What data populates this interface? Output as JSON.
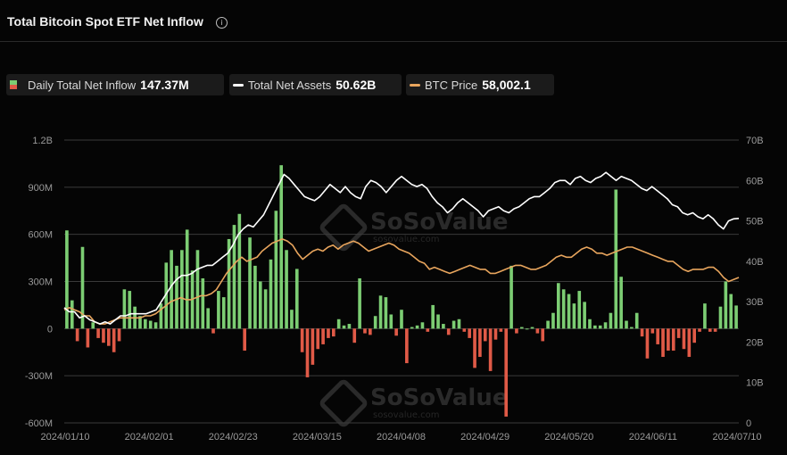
{
  "header": {
    "title": "Total Bitcoin Spot ETF Net Inflow",
    "info_icon": "info-icon"
  },
  "legend": [
    {
      "label": "Daily Total Net Inflow",
      "value": "147.37M",
      "swatch": "bar"
    },
    {
      "label": "Total Net Assets",
      "value": "50.62B",
      "swatch": "line",
      "color": "#ffffff"
    },
    {
      "label": "BTC Price",
      "value": "58,002.1",
      "swatch": "line",
      "color": "#e8a55d"
    }
  ],
  "watermark": {
    "text": "SoSoValue",
    "sub": "sosovalue.com"
  },
  "colors": {
    "positive": "#7ccd73",
    "negative": "#e05a47",
    "assets": "#ffffff",
    "price": "#e8a55d",
    "grid": "#3a3a3a"
  },
  "chart_data": {
    "type": "bar",
    "title": "Total Bitcoin Spot ETF Net Inflow",
    "x_tick_labels": [
      "2024/01/10",
      "2024/02/01",
      "2024/02/23",
      "2024/03/15",
      "2024/04/08",
      "2024/04/29",
      "2024/05/20",
      "2024/06/11",
      "2024/07/10"
    ],
    "y_left": {
      "ticks": [
        "1.2B",
        "900M",
        "600M",
        "300M",
        "0",
        "-300M",
        "-600M"
      ],
      "tick_values": [
        1200,
        900,
        600,
        300,
        0,
        -300,
        -600
      ],
      "range": [
        -600,
        1200
      ],
      "unit": "M"
    },
    "y_right": {
      "ticks": [
        "70B",
        "60B",
        "50B",
        "40B",
        "30B",
        "20B",
        "10B",
        "0"
      ],
      "tick_values": [
        70,
        60,
        50,
        40,
        30,
        20,
        10,
        0
      ],
      "range": [
        0,
        70
      ],
      "unit": "B"
    },
    "grid": true,
    "series": [
      {
        "name": "Daily Total Net Inflow",
        "type": "bar",
        "axis": "left",
        "values": [
          625,
          180,
          -80,
          520,
          -120,
          40,
          -60,
          -90,
          -110,
          -150,
          -80,
          250,
          240,
          140,
          80,
          60,
          50,
          40,
          160,
          420,
          500,
          400,
          500,
          630,
          370,
          500,
          320,
          130,
          -30,
          240,
          200,
          570,
          660,
          730,
          -140,
          580,
          400,
          300,
          250,
          440,
          750,
          1040,
          500,
          120,
          380,
          -150,
          -310,
          -230,
          -130,
          -100,
          -60,
          -50,
          60,
          20,
          30,
          -90,
          320,
          -30,
          -40,
          80,
          210,
          200,
          90,
          -45,
          120,
          -220,
          10,
          20,
          40,
          -20,
          150,
          90,
          30,
          -40,
          50,
          60,
          -20,
          -60,
          -250,
          -180,
          -80,
          -270,
          -70,
          -20,
          -560,
          400,
          -30,
          10,
          0,
          10,
          -30,
          -80,
          50,
          100,
          290,
          250,
          220,
          160,
          240,
          170,
          60,
          20,
          20,
          40,
          100,
          885,
          330,
          50,
          10,
          100,
          -50,
          -190,
          -30,
          -100,
          -180,
          -140,
          -140,
          -60,
          -130,
          -180,
          -90,
          -20,
          160,
          -20,
          -20,
          140,
          300,
          220,
          147
        ]
      },
      {
        "name": "Total Net Assets",
        "type": "line",
        "axis": "right",
        "values": [
          28.5,
          27.5,
          27.5,
          26.0,
          26.5,
          25.5,
          25.0,
          24.5,
          25.0,
          24.5,
          25.5,
          26.5,
          26.5,
          27.0,
          27.0,
          27.0,
          27.0,
          27.5,
          28.0,
          30.0,
          32.0,
          34.0,
          35.5,
          36.5,
          36.5,
          37.0,
          38.0,
          38.5,
          39.0,
          39.0,
          40.0,
          41.0,
          42.0,
          44.0,
          46.5,
          48.0,
          49.0,
          48.5,
          50.0,
          51.5,
          54.0,
          56.5,
          59.0,
          61.5,
          60.5,
          59.0,
          57.5,
          56.0,
          55.5,
          55.0,
          56.0,
          57.5,
          59.0,
          58.0,
          57.0,
          58.5,
          57.0,
          56.0,
          55.5,
          58.5,
          60.0,
          59.5,
          58.5,
          57.0,
          58.5,
          60.0,
          61.0,
          60.0,
          59.0,
          58.5,
          59.0,
          58.0,
          56.0,
          54.5,
          53.5,
          52.0,
          53.0,
          54.5,
          55.5,
          54.5,
          53.5,
          52.5,
          51.0,
          52.5,
          53.0,
          53.5,
          52.5,
          52.0,
          53.0,
          53.5,
          54.5,
          55.5,
          56.0,
          56.0,
          57.0,
          58.0,
          59.5,
          60.0,
          60.0,
          59.0,
          60.5,
          61.0,
          60.0,
          59.5,
          60.5,
          61.0,
          62.0,
          61.0,
          60.0,
          61.0,
          60.5,
          60.0,
          59.0,
          58.0,
          57.5,
          58.5,
          57.5,
          56.5,
          55.5,
          54.0,
          53.5,
          52.0,
          51.5,
          52.0,
          51.0,
          50.5,
          51.5,
          50.5,
          49.0,
          48.0,
          50.0,
          50.5,
          50.62
        ]
      },
      {
        "name": "BTC Price",
        "type": "line",
        "axis": "right",
        "values": [
          28.0,
          28.5,
          28.0,
          27.5,
          26.5,
          26.5,
          25.0,
          24.5,
          24.5,
          25.0,
          25.5,
          26.0,
          26.0,
          26.0,
          26.0,
          26.0,
          26.5,
          26.5,
          27.0,
          28.0,
          29.0,
          30.0,
          30.5,
          31.0,
          30.5,
          30.5,
          31.0,
          31.5,
          31.5,
          32.0,
          33.0,
          35.0,
          37.0,
          38.5,
          40.0,
          41.0,
          40.0,
          40.5,
          41.0,
          42.5,
          43.5,
          44.5,
          45.0,
          45.5,
          45.0,
          44.0,
          42.0,
          40.5,
          41.5,
          42.5,
          43.0,
          42.5,
          43.5,
          44.0,
          43.0,
          44.0,
          44.5,
          45.0,
          44.5,
          43.5,
          42.5,
          43.0,
          43.5,
          44.0,
          44.5,
          44.0,
          43.0,
          42.5,
          42.0,
          41.0,
          40.0,
          39.5,
          38.0,
          38.5,
          38.0,
          37.5,
          37.0,
          37.5,
          38.0,
          38.5,
          39.0,
          38.5,
          38.0,
          38.0,
          37.0,
          37.0,
          37.5,
          38.0,
          38.5,
          39.0,
          39.0,
          38.5,
          38.0,
          38.0,
          38.5,
          39.0,
          40.0,
          41.0,
          41.5,
          41.0,
          41.0,
          42.0,
          43.0,
          43.5,
          43.0,
          42.0,
          42.0,
          41.5,
          42.0,
          42.5,
          43.0,
          43.5,
          43.5,
          43.0,
          42.5,
          42.0,
          41.5,
          41.0,
          40.5,
          40.0,
          40.0,
          39.0,
          38.0,
          37.5,
          38.0,
          38.0,
          38.0,
          38.5,
          38.5,
          37.5,
          36.0,
          35.0,
          35.5,
          36.0
        ]
      }
    ]
  }
}
